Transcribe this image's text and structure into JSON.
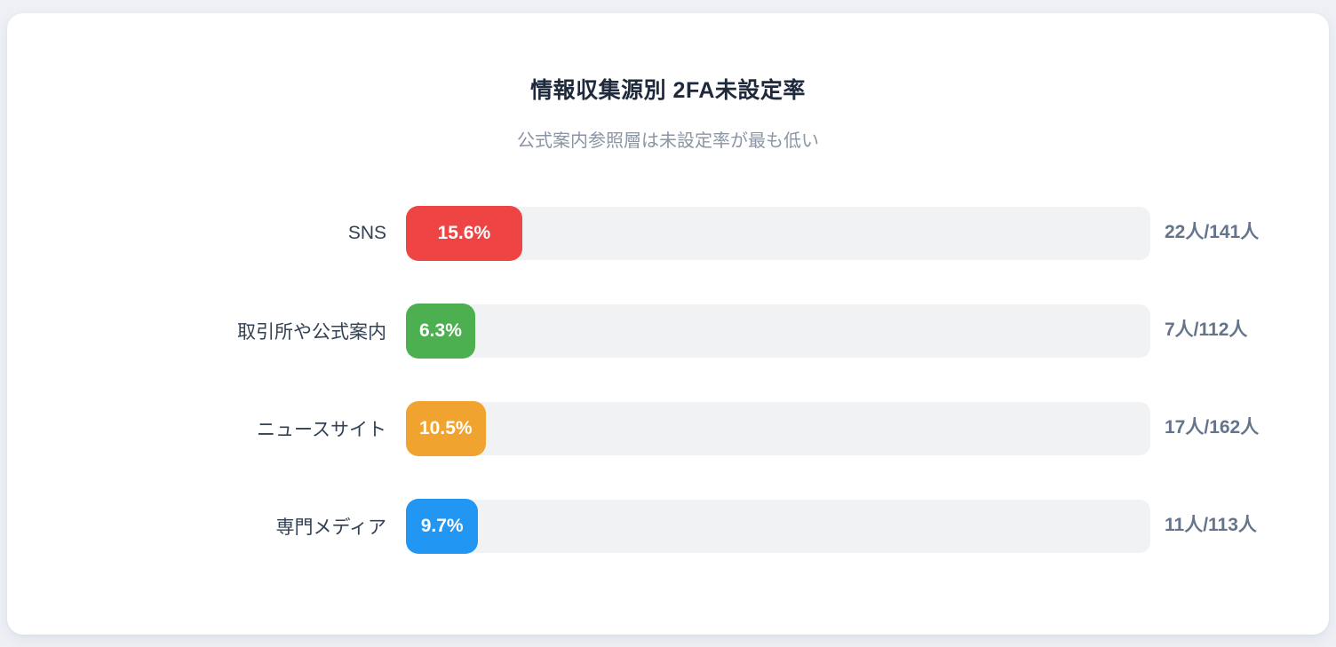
{
  "page": {
    "background_color": "#eef0f6",
    "card_background_color": "#ffffff"
  },
  "header": {
    "title": "情報収集源別 2FA未設定率",
    "subtitle": "公式案内参照層は未設定率が最も低い"
  },
  "chart_data": {
    "type": "bar",
    "orientation": "horizontal",
    "title": "情報収集源別 2FA未設定率",
    "subtitle": "公式案内参照層は未設定率が最も低い",
    "categories": [
      "SNS",
      "取引所や公式案内",
      "ニュースサイト",
      "専門メディア"
    ],
    "values": [
      15.6,
      6.3,
      10.5,
      9.7
    ],
    "value_labels": [
      "15.6%",
      "6.3%",
      "10.5%",
      "9.7%"
    ],
    "count_labels": [
      "22人/141人",
      "7人/112人",
      "17人/162人",
      "11人/113人"
    ],
    "counts": [
      {
        "unset": 22,
        "total": 141
      },
      {
        "unset": 7,
        "total": 112
      },
      {
        "unset": 17,
        "total": 162
      },
      {
        "unset": 11,
        "total": 113
      }
    ],
    "bar_colors": [
      "#ef4444",
      "#4caf50",
      "#f0a32e",
      "#2196f3"
    ],
    "track_color": "#f1f2f4",
    "xlim": [
      0,
      100
    ],
    "grid": false,
    "legend": false
  }
}
